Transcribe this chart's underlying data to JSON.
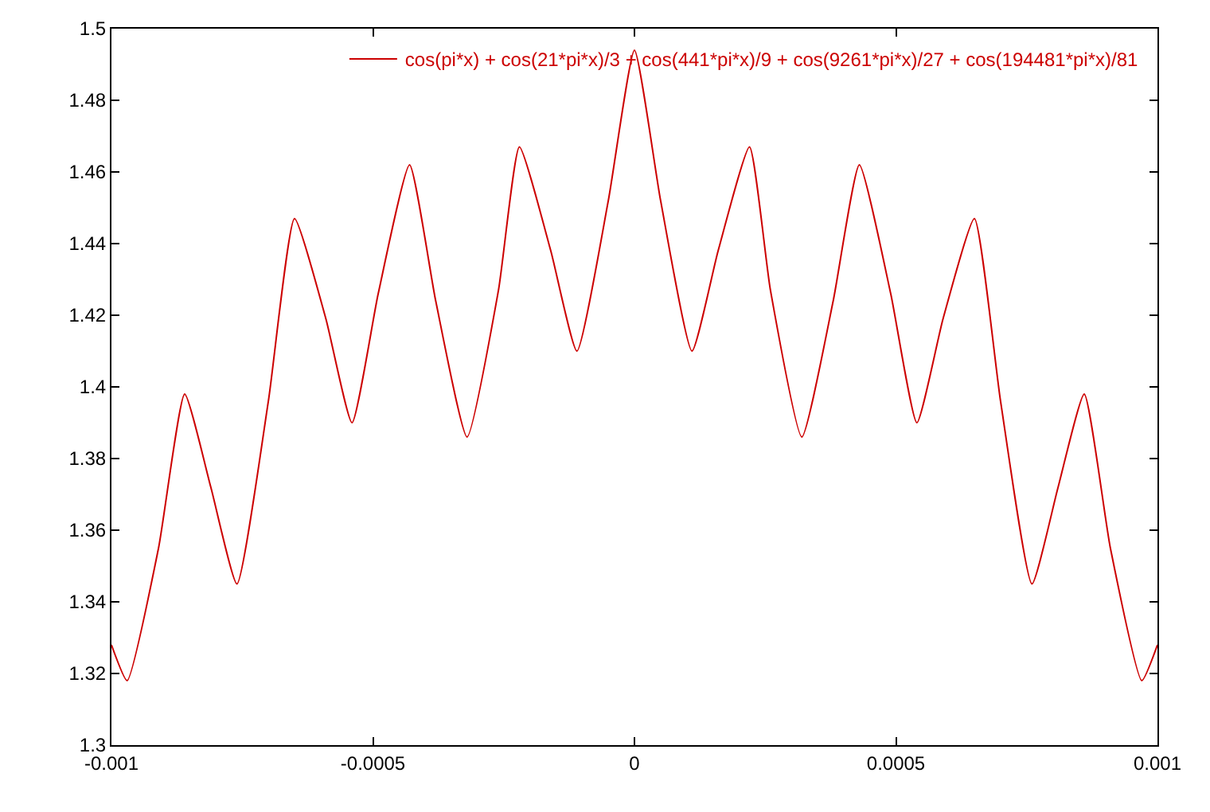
{
  "chart_data": {
    "type": "line",
    "x": [
      -0.001,
      -0.00097,
      -0.00091,
      -0.00086,
      -0.00081,
      -0.00076,
      -0.0007,
      -0.00065,
      -0.00059,
      -0.00054,
      -0.00049,
      -0.00043,
      -0.00038,
      -0.00032,
      -0.00026,
      -0.00022,
      -0.00016,
      -0.00011,
      -5e-05,
      0,
      5e-05,
      0.00011,
      0.00016,
      0.00022,
      0.00026,
      0.00032,
      0.00038,
      0.00043,
      0.00049,
      0.00054,
      0.00059,
      0.00065,
      0.0007,
      0.00076,
      0.00081,
      0.00086,
      0.00091,
      0.00097,
      0.001
    ],
    "series": [
      {
        "name": "cos(pi*x) + cos(21*pi*x)/3 + cos(441*pi*x)/9 + cos(9261*pi*x)/27 + cos(194481*pi*x)/81",
        "color": "#cc0000",
        "values": [
          1.328,
          1.318,
          1.355,
          1.398,
          1.372,
          1.345,
          1.396,
          1.447,
          1.419,
          1.39,
          1.426,
          1.462,
          1.424,
          1.386,
          1.427,
          1.467,
          1.438,
          1.41,
          1.452,
          1.494,
          1.452,
          1.41,
          1.438,
          1.467,
          1.427,
          1.386,
          1.424,
          1.462,
          1.426,
          1.39,
          1.419,
          1.447,
          1.396,
          1.345,
          1.372,
          1.398,
          1.355,
          1.318,
          1.328
        ]
      }
    ],
    "xlim": [
      -0.001,
      0.001
    ],
    "xticks": [
      -0.001,
      -0.0005,
      0,
      0.0005,
      0.001
    ],
    "ylim": [
      1.3,
      1.5
    ],
    "yticks": [
      1.3,
      1.32,
      1.34,
      1.36,
      1.38,
      1.4,
      1.42,
      1.44,
      1.46,
      1.48,
      1.5
    ],
    "legend": "top right",
    "marker": "none",
    "line_style": "solid"
  }
}
